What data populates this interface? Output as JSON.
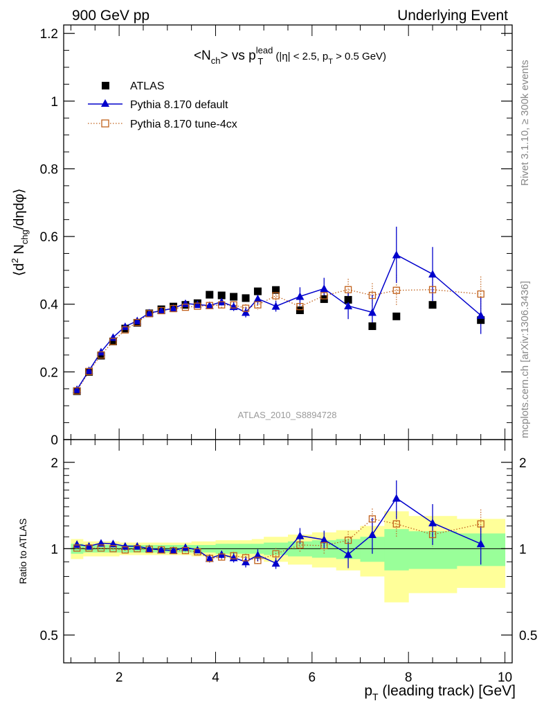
{
  "header": {
    "left": "900 GeV pp",
    "right": "Underlying Event"
  },
  "side_labels": {
    "rivet": "Rivet 3.1.10, ≥ 300k events",
    "mcplots": "mcplots.cern.ch [arXiv:1306.3436]"
  },
  "chart_data": [
    {
      "type": "scatter",
      "panel": "main",
      "title_parts": {
        "a": "<N",
        "a_sub": "ch",
        "b": "> vs p",
        "b_sup": "lead",
        "b_sub": "T",
        "c": " (|η| < 2.5, p",
        "c_sub": "T",
        "d": " > 0.5 GeV)"
      },
      "ylabel_parts": {
        "a": "⟨d",
        "a_sup": "2",
        "b": " N",
        "b_sub": "chg",
        "c": "/dηdφ⟩"
      },
      "watermark": "ATLAS_2010_S8894728",
      "xlim": [
        0.85,
        10.15
      ],
      "ylim": [
        0,
        1.225
      ],
      "yticks": [
        0,
        0.2,
        0.4,
        0.6,
        0.8,
        1,
        1.2
      ],
      "ytick_labels": [
        "0",
        "0.2",
        "0.4",
        "0.6",
        "0.8",
        "1",
        "1.2"
      ],
      "legend_placement": "top-left",
      "series": [
        {
          "name": "ATLAS",
          "style": "square-filled",
          "color": "#000000",
          "x": [
            1.125,
            1.375,
            1.625,
            1.875,
            2.125,
            2.375,
            2.625,
            2.875,
            3.125,
            3.375,
            3.625,
            3.875,
            4.125,
            4.375,
            4.625,
            4.875,
            5.25,
            5.75,
            6.25,
            6.75,
            7.25,
            7.75,
            8.5,
            9.5
          ],
          "y": [
            0.143,
            0.2,
            0.248,
            0.29,
            0.328,
            0.345,
            0.373,
            0.385,
            0.393,
            0.398,
            0.403,
            0.428,
            0.426,
            0.422,
            0.418,
            0.438,
            0.442,
            0.382,
            0.415,
            0.413,
            0.335,
            0.364,
            0.398,
            0.353
          ]
        },
        {
          "name": "Pythia 8.170 default",
          "style": "triangle-line",
          "color": "#0000cc",
          "x": [
            1.125,
            1.375,
            1.625,
            1.875,
            2.125,
            2.375,
            2.625,
            2.875,
            3.125,
            3.375,
            3.625,
            3.875,
            4.125,
            4.375,
            4.625,
            4.875,
            5.25,
            5.75,
            6.25,
            6.75,
            7.25,
            7.75,
            8.5,
            9.5
          ],
          "y": [
            0.148,
            0.204,
            0.259,
            0.302,
            0.334,
            0.351,
            0.374,
            0.381,
            0.388,
            0.402,
            0.399,
            0.396,
            0.407,
            0.393,
            0.376,
            0.416,
            0.394,
            0.423,
            0.446,
            0.395,
            0.376,
            0.546,
            0.489,
            0.367
          ],
          "err": [
            0.003,
            0.004,
            0.004,
            0.004,
            0.004,
            0.005,
            0.006,
            0.006,
            0.007,
            0.009,
            0.008,
            0.009,
            0.011,
            0.013,
            0.015,
            0.017,
            0.016,
            0.027,
            0.032,
            0.039,
            0.052,
            0.083,
            0.08,
            0.055
          ]
        },
        {
          "name": "Pythia 8.170 tune-4cx",
          "style": "square-open-dotted",
          "color": "#c0601a",
          "x": [
            1.125,
            1.375,
            1.625,
            1.875,
            2.125,
            2.375,
            2.625,
            2.875,
            3.125,
            3.375,
            3.625,
            3.875,
            4.125,
            4.375,
            4.625,
            4.875,
            5.25,
            5.75,
            6.25,
            6.75,
            7.25,
            7.75,
            8.5,
            9.5
          ],
          "y": [
            0.144,
            0.201,
            0.25,
            0.29,
            0.324,
            0.346,
            0.372,
            0.381,
            0.387,
            0.391,
            0.394,
            0.396,
            0.398,
            0.398,
            0.388,
            0.398,
            0.425,
            0.393,
            0.425,
            0.443,
            0.426,
            0.441,
            0.443,
            0.43
          ],
          "err": [
            0.003,
            0.004,
            0.004,
            0.004,
            0.004,
            0.005,
            0.005,
            0.006,
            0.006,
            0.007,
            0.007,
            0.008,
            0.009,
            0.011,
            0.012,
            0.015,
            0.018,
            0.021,
            0.025,
            0.032,
            0.036,
            0.046,
            0.037,
            0.052
          ]
        }
      ]
    },
    {
      "type": "scatter",
      "panel": "ratio",
      "ylabel": "Ratio to ATLAS",
      "ylim": [
        0.4,
        2.4
      ],
      "yticks": [
        0.5,
        1,
        2
      ],
      "ytick_labels": [
        "0.5",
        "1",
        "2"
      ],
      "xlabel_parts": {
        "a": "p",
        "a_sub": "T",
        "b": " (leading track) [GeV]"
      },
      "xlim": [
        0.85,
        10.15
      ],
      "xticks": [
        2,
        4,
        6,
        8,
        10
      ],
      "xtick_labels": [
        "2",
        "4",
        "6",
        "8",
        "10"
      ],
      "bands": {
        "edges": [
          1.0,
          1.25,
          1.5,
          1.75,
          2.0,
          2.25,
          2.5,
          2.75,
          3.0,
          3.25,
          3.5,
          3.75,
          4.0,
          4.25,
          4.5,
          4.75,
          5.0,
          5.5,
          6.0,
          6.5,
          7.0,
          7.5,
          8.0,
          9.0,
          10.0
        ],
        "green_lo": [
          0.96,
          0.97,
          0.97,
          0.97,
          0.97,
          0.97,
          0.97,
          0.97,
          0.97,
          0.97,
          0.97,
          0.97,
          0.96,
          0.96,
          0.96,
          0.96,
          0.95,
          0.94,
          0.93,
          0.92,
          0.9,
          0.84,
          0.85,
          0.87
        ],
        "green_hi": [
          1.04,
          1.03,
          1.03,
          1.03,
          1.03,
          1.03,
          1.03,
          1.03,
          1.03,
          1.03,
          1.03,
          1.03,
          1.04,
          1.04,
          1.04,
          1.04,
          1.05,
          1.06,
          1.07,
          1.08,
          1.1,
          1.17,
          1.15,
          1.13
        ],
        "yellow_lo": [
          0.92,
          0.94,
          0.94,
          0.94,
          0.95,
          0.95,
          0.95,
          0.95,
          0.95,
          0.95,
          0.94,
          0.94,
          0.93,
          0.93,
          0.93,
          0.92,
          0.9,
          0.88,
          0.86,
          0.84,
          0.8,
          0.65,
          0.7,
          0.73
        ],
        "yellow_hi": [
          1.08,
          1.06,
          1.06,
          1.06,
          1.05,
          1.05,
          1.05,
          1.05,
          1.05,
          1.05,
          1.06,
          1.06,
          1.07,
          1.07,
          1.07,
          1.08,
          1.1,
          1.12,
          1.14,
          1.16,
          1.2,
          1.35,
          1.3,
          1.27
        ],
        "green_color": "#99ff99",
        "yellow_color": "#ffff99"
      },
      "series": [
        {
          "name": "Pythia 8.170 default",
          "style": "triangle-line",
          "color": "#0000cc",
          "x": [
            1.125,
            1.375,
            1.625,
            1.875,
            2.125,
            2.375,
            2.625,
            2.875,
            3.125,
            3.375,
            3.625,
            3.875,
            4.125,
            4.375,
            4.625,
            4.875,
            5.25,
            5.75,
            6.25,
            6.75,
            7.25,
            7.75,
            8.5,
            9.5
          ],
          "y": [
            1.035,
            1.02,
            1.045,
            1.04,
            1.02,
            1.02,
            1.0,
            0.99,
            0.985,
            1.01,
            0.99,
            0.925,
            0.955,
            0.93,
            0.9,
            0.95,
            0.89,
            1.11,
            1.075,
            0.955,
            1.12,
            1.5,
            1.23,
            1.04
          ],
          "err": [
            0.02,
            0.02,
            0.02,
            0.02,
            0.02,
            0.02,
            0.02,
            0.02,
            0.02,
            0.025,
            0.025,
            0.03,
            0.03,
            0.035,
            0.04,
            0.045,
            0.04,
            0.07,
            0.08,
            0.1,
            0.16,
            0.23,
            0.2,
            0.16
          ]
        },
        {
          "name": "Pythia 8.170 tune-4cx",
          "style": "square-open-dotted",
          "color": "#c0601a",
          "x": [
            1.125,
            1.375,
            1.625,
            1.875,
            2.125,
            2.375,
            2.625,
            2.875,
            3.125,
            3.375,
            3.625,
            3.875,
            4.125,
            4.375,
            4.625,
            4.875,
            5.25,
            5.75,
            6.25,
            6.75,
            7.25,
            7.75,
            8.5,
            9.5
          ],
          "y": [
            1.005,
            1.005,
            1.005,
            1.0,
            0.99,
            1.0,
            0.995,
            0.99,
            0.985,
            0.985,
            0.975,
            0.925,
            0.935,
            0.945,
            0.93,
            0.91,
            0.96,
            1.03,
            1.025,
            1.07,
            1.27,
            1.22,
            1.12,
            1.22
          ],
          "err": [
            0.02,
            0.02,
            0.02,
            0.02,
            0.02,
            0.02,
            0.02,
            0.02,
            0.02,
            0.02,
            0.02,
            0.025,
            0.025,
            0.03,
            0.03,
            0.035,
            0.045,
            0.055,
            0.065,
            0.08,
            0.11,
            0.13,
            0.1,
            0.15
          ]
        }
      ]
    }
  ]
}
